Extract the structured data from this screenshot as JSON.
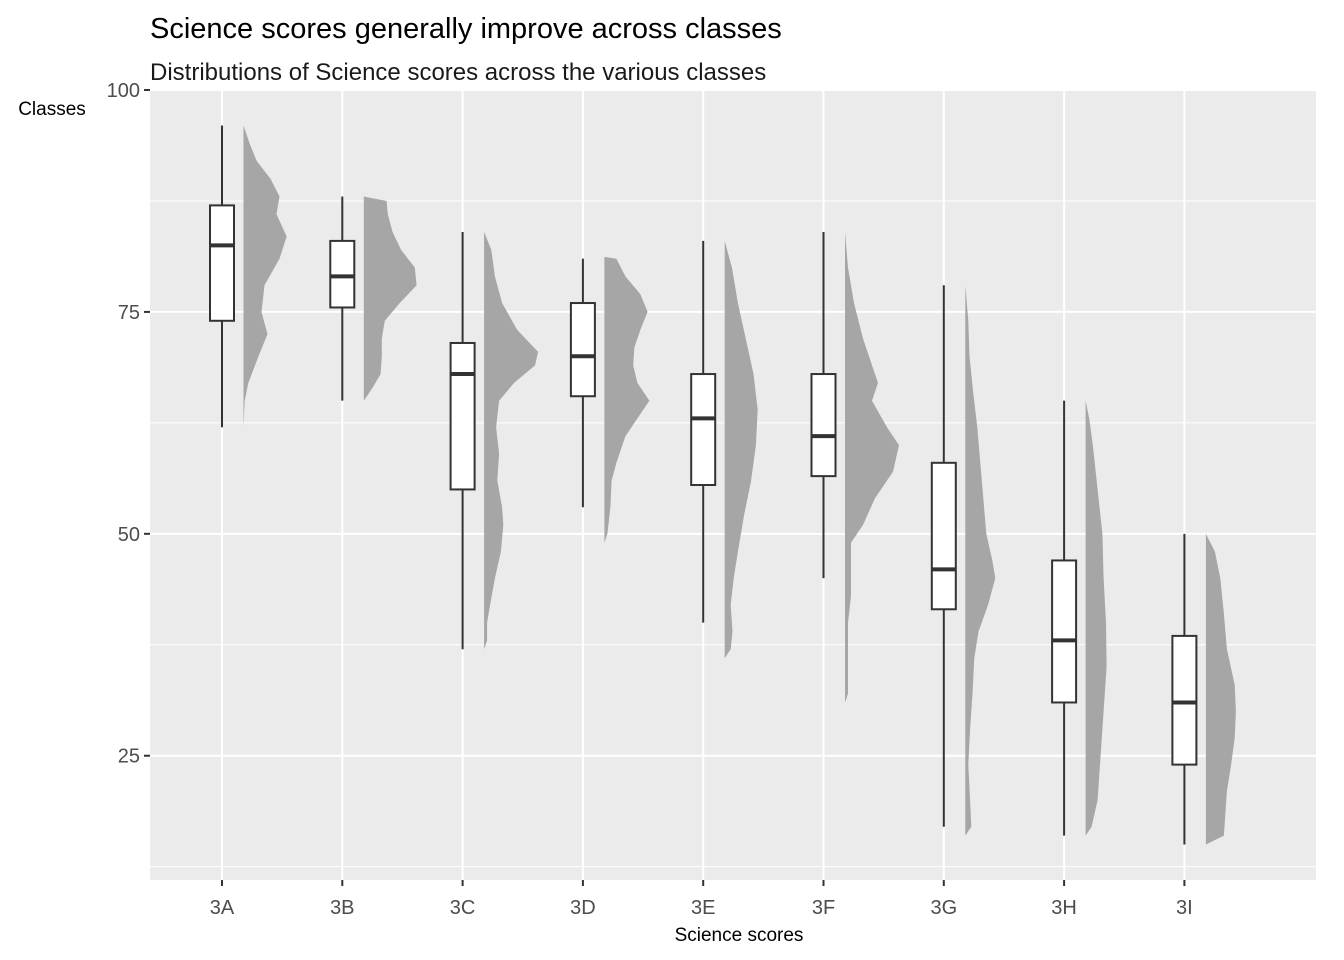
{
  "chart_data": {
    "type": "raincloud",
    "title": "Science scores generally improve across classes",
    "subtitle": "Distributions of Science scores across the various classes",
    "xlabel": "Science scores",
    "ylabel": "Classes",
    "categories": [
      "3A",
      "3B",
      "3C",
      "3D",
      "3E",
      "3F",
      "3G",
      "3H",
      "3I"
    ],
    "ylim": [
      11,
      100
    ],
    "yticks": [
      25,
      50,
      75,
      100
    ],
    "grid": true,
    "legend": "none",
    "colors": {
      "panel": "#ebebeb",
      "grid": "#ffffff",
      "density": "#a6a6a6",
      "box_fill": "#ffffff",
      "box_line": "#333333"
    },
    "boxes": [
      {
        "category": "3A",
        "min": 62,
        "q1": 74,
        "median": 82.5,
        "q3": 87,
        "max": 96
      },
      {
        "category": "3B",
        "min": 65,
        "q1": 75.5,
        "median": 79,
        "q3": 83,
        "max": 88
      },
      {
        "category": "3C",
        "min": 37,
        "q1": 55,
        "median": 68,
        "q3": 71.5,
        "max": 84
      },
      {
        "category": "3D",
        "min": 53,
        "q1": 65.5,
        "median": 70,
        "q3": 76,
        "max": 81
      },
      {
        "category": "3E",
        "min": 40,
        "q1": 55.5,
        "median": 63,
        "q3": 68,
        "max": 83
      },
      {
        "category": "3F",
        "min": 45,
        "q1": 56.5,
        "median": 61,
        "q3": 68,
        "max": 84
      },
      {
        "category": "3G",
        "min": 17,
        "q1": 41.5,
        "median": 46,
        "q3": 58,
        "max": 78
      },
      {
        "category": "3H",
        "min": 16,
        "q1": 31,
        "median": 38,
        "q3": 47,
        "max": 65
      },
      {
        "category": "3I",
        "min": 15,
        "q1": 24,
        "median": 31,
        "q3": 38.5,
        "max": 50
      }
    ],
    "densities": [
      {
        "category": "3A",
        "profile": [
          [
            62,
            0.0
          ],
          [
            65,
            0.02
          ],
          [
            67,
            0.08
          ],
          [
            70,
            0.25
          ],
          [
            72.5,
            0.4
          ],
          [
            75,
            0.3
          ],
          [
            78,
            0.35
          ],
          [
            81,
            0.6
          ],
          [
            83.5,
            0.72
          ],
          [
            86,
            0.55
          ],
          [
            88,
            0.6
          ],
          [
            90,
            0.45
          ],
          [
            92,
            0.22
          ],
          [
            94,
            0.1
          ],
          [
            96,
            0.0
          ]
        ]
      },
      {
        "category": "3B",
        "profile": [
          [
            65,
            0.0
          ],
          [
            66.5,
            0.15
          ],
          [
            68,
            0.28
          ],
          [
            70,
            0.3
          ],
          [
            72,
            0.3
          ],
          [
            74,
            0.35
          ],
          [
            76,
            0.6
          ],
          [
            78,
            0.88
          ],
          [
            80,
            0.85
          ],
          [
            82,
            0.62
          ],
          [
            84,
            0.48
          ],
          [
            86,
            0.4
          ],
          [
            87.5,
            0.38
          ],
          [
            88,
            0.0
          ]
        ]
      },
      {
        "category": "3C",
        "profile": [
          [
            37,
            0.0
          ],
          [
            38,
            0.05
          ],
          [
            40,
            0.05
          ],
          [
            42,
            0.1
          ],
          [
            45,
            0.18
          ],
          [
            48,
            0.28
          ],
          [
            51,
            0.32
          ],
          [
            53,
            0.3
          ],
          [
            56,
            0.22
          ],
          [
            59,
            0.25
          ],
          [
            62,
            0.2
          ],
          [
            65,
            0.25
          ],
          [
            67,
            0.5
          ],
          [
            69,
            0.85
          ],
          [
            70.5,
            0.9
          ],
          [
            73,
            0.55
          ],
          [
            76,
            0.3
          ],
          [
            79,
            0.18
          ],
          [
            82,
            0.12
          ],
          [
            84,
            0.0
          ]
        ]
      },
      {
        "category": "3D",
        "profile": [
          [
            49,
            0.0
          ],
          [
            50,
            0.05
          ],
          [
            53,
            0.1
          ],
          [
            56,
            0.12
          ],
          [
            58,
            0.2
          ],
          [
            61,
            0.35
          ],
          [
            63,
            0.55
          ],
          [
            65,
            0.75
          ],
          [
            67,
            0.55
          ],
          [
            69,
            0.48
          ],
          [
            71,
            0.5
          ],
          [
            73,
            0.6
          ],
          [
            75,
            0.72
          ],
          [
            77,
            0.6
          ],
          [
            79,
            0.35
          ],
          [
            81,
            0.2
          ],
          [
            81.2,
            0.0
          ]
        ]
      },
      {
        "category": "3E",
        "profile": [
          [
            36,
            0.0
          ],
          [
            37,
            0.1
          ],
          [
            39,
            0.13
          ],
          [
            42,
            0.1
          ],
          [
            45,
            0.15
          ],
          [
            48,
            0.22
          ],
          [
            52,
            0.32
          ],
          [
            56,
            0.44
          ],
          [
            60,
            0.52
          ],
          [
            64,
            0.55
          ],
          [
            68,
            0.48
          ],
          [
            72,
            0.35
          ],
          [
            76,
            0.22
          ],
          [
            80,
            0.12
          ],
          [
            83,
            0.0
          ]
        ]
      },
      {
        "category": "3F",
        "profile": [
          [
            31,
            0.0
          ],
          [
            32,
            0.05
          ],
          [
            35,
            0.05
          ],
          [
            37,
            0.05
          ],
          [
            40,
            0.05
          ],
          [
            43,
            0.1
          ],
          [
            46,
            0.1
          ],
          [
            49,
            0.1
          ],
          [
            51,
            0.3
          ],
          [
            54,
            0.5
          ],
          [
            57,
            0.8
          ],
          [
            60,
            0.9
          ],
          [
            62,
            0.7
          ],
          [
            65,
            0.45
          ],
          [
            67,
            0.55
          ],
          [
            69,
            0.45
          ],
          [
            72,
            0.3
          ],
          [
            76,
            0.15
          ],
          [
            80,
            0.05
          ],
          [
            84,
            0.0
          ]
        ]
      },
      {
        "category": "3G",
        "profile": [
          [
            16,
            0.0
          ],
          [
            17,
            0.1
          ],
          [
            20,
            0.08
          ],
          [
            24,
            0.05
          ],
          [
            28,
            0.08
          ],
          [
            32,
            0.12
          ],
          [
            36,
            0.15
          ],
          [
            39,
            0.22
          ],
          [
            42,
            0.38
          ],
          [
            45,
            0.5
          ],
          [
            47,
            0.45
          ],
          [
            50,
            0.35
          ],
          [
            54,
            0.3
          ],
          [
            58,
            0.25
          ],
          [
            62,
            0.2
          ],
          [
            66,
            0.13
          ],
          [
            70,
            0.07
          ],
          [
            74,
            0.05
          ],
          [
            78,
            0.0
          ]
        ]
      },
      {
        "category": "3H",
        "profile": [
          [
            16,
            0.0
          ],
          [
            17,
            0.1
          ],
          [
            20,
            0.2
          ],
          [
            25,
            0.25
          ],
          [
            30,
            0.3
          ],
          [
            35,
            0.35
          ],
          [
            40,
            0.34
          ],
          [
            45,
            0.3
          ],
          [
            50,
            0.28
          ],
          [
            55,
            0.2
          ],
          [
            60,
            0.12
          ],
          [
            63,
            0.06
          ],
          [
            65,
            0.0
          ]
        ]
      },
      {
        "category": "3I",
        "profile": [
          [
            15,
            0.0
          ],
          [
            16,
            0.3
          ],
          [
            18,
            0.32
          ],
          [
            21,
            0.35
          ],
          [
            24,
            0.42
          ],
          [
            27,
            0.48
          ],
          [
            30,
            0.5
          ],
          [
            33,
            0.48
          ],
          [
            37,
            0.35
          ],
          [
            41,
            0.3
          ],
          [
            45,
            0.24
          ],
          [
            48,
            0.15
          ],
          [
            50,
            0.0
          ]
        ]
      }
    ]
  }
}
